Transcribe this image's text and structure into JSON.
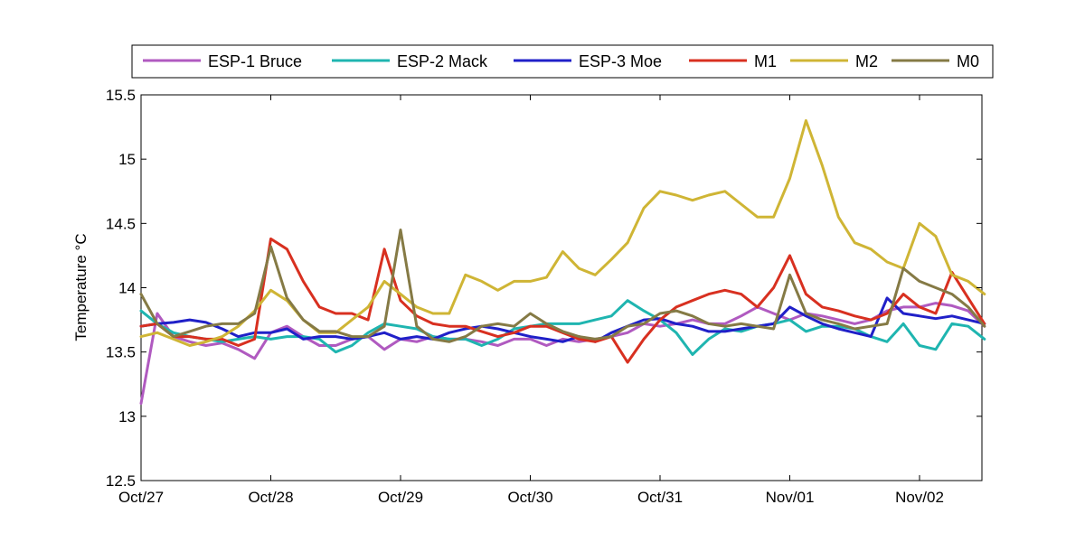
{
  "chart_data": {
    "type": "line",
    "ylabel": "Temperature °C",
    "xlabel": "",
    "ylim": [
      12.5,
      15.5
    ],
    "xlim": [
      "Oct/27",
      "Nov/02 12:00"
    ],
    "x_ticks": [
      "Oct/27",
      "Oct/28",
      "Oct/29",
      "Oct/30",
      "Oct/31",
      "Nov/01",
      "Nov/02"
    ],
    "y_ticks": [
      12.5,
      13,
      13.5,
      14,
      14.5,
      15,
      15.5
    ],
    "y_tick_labels": [
      "12.5",
      "13",
      "13.5",
      "14",
      "14.5",
      "15",
      "15.5"
    ],
    "grid": false,
    "legend_position": "top (horizontal, outside plot)",
    "x": [
      "Oct/27 00:00",
      "Oct/27 03:00",
      "Oct/27 06:00",
      "Oct/27 09:00",
      "Oct/27 12:00",
      "Oct/27 15:00",
      "Oct/27 18:00",
      "Oct/27 21:00",
      "Oct/28 00:00",
      "Oct/28 03:00",
      "Oct/28 06:00",
      "Oct/28 09:00",
      "Oct/28 12:00",
      "Oct/28 15:00",
      "Oct/28 18:00",
      "Oct/28 21:00",
      "Oct/29 00:00",
      "Oct/29 03:00",
      "Oct/29 06:00",
      "Oct/29 09:00",
      "Oct/29 12:00",
      "Oct/29 15:00",
      "Oct/29 18:00",
      "Oct/29 21:00",
      "Oct/30 00:00",
      "Oct/30 03:00",
      "Oct/30 06:00",
      "Oct/30 09:00",
      "Oct/30 12:00",
      "Oct/30 15:00",
      "Oct/30 18:00",
      "Oct/30 21:00",
      "Oct/31 00:00",
      "Oct/31 03:00",
      "Oct/31 06:00",
      "Oct/31 09:00",
      "Oct/31 12:00",
      "Oct/31 15:00",
      "Oct/31 18:00",
      "Oct/31 21:00",
      "Nov/01 00:00",
      "Nov/01 03:00",
      "Nov/01 06:00",
      "Nov/01 09:00",
      "Nov/01 12:00",
      "Nov/01 15:00",
      "Nov/01 18:00",
      "Nov/01 21:00",
      "Nov/02 00:00",
      "Nov/02 03:00",
      "Nov/02 06:00",
      "Nov/02 09:00",
      "Nov/02 12:00"
    ],
    "series": [
      {
        "name": "ESP-1 Bruce",
        "color": "#b05ac0",
        "values": [
          13.1,
          13.8,
          13.62,
          13.58,
          13.55,
          13.57,
          13.52,
          13.45,
          13.65,
          13.7,
          13.62,
          13.55,
          13.55,
          13.6,
          13.62,
          13.52,
          13.6,
          13.58,
          13.62,
          13.6,
          13.6,
          13.58,
          13.55,
          13.6,
          13.6,
          13.55,
          13.6,
          13.58,
          13.6,
          13.62,
          13.65,
          13.72,
          13.7,
          13.72,
          13.75,
          13.72,
          13.72,
          13.78,
          13.85,
          13.8,
          13.75,
          13.8,
          13.78,
          13.75,
          13.72,
          13.75,
          13.82,
          13.85,
          13.85,
          13.88,
          13.86,
          13.82,
          13.7
        ]
      },
      {
        "name": "ESP-2 Mack",
        "color": "#1fb5b0",
        "values": [
          13.82,
          13.72,
          13.65,
          13.62,
          13.6,
          13.58,
          13.6,
          13.62,
          13.6,
          13.62,
          13.62,
          13.6,
          13.5,
          13.55,
          13.65,
          13.72,
          13.7,
          13.68,
          13.62,
          13.6,
          13.6,
          13.55,
          13.6,
          13.68,
          13.7,
          13.72,
          13.72,
          13.72,
          13.75,
          13.78,
          13.9,
          13.82,
          13.75,
          13.65,
          13.48,
          13.6,
          13.68,
          13.66,
          13.7,
          13.72,
          13.75,
          13.66,
          13.7,
          13.7,
          13.68,
          13.62,
          13.58,
          13.72,
          13.55,
          13.52,
          13.72,
          13.7,
          13.6
        ]
      },
      {
        "name": "ESP-3 Moe",
        "color": "#2020c8",
        "values": [
          13.7,
          13.72,
          13.73,
          13.75,
          13.73,
          13.68,
          13.62,
          13.65,
          13.65,
          13.68,
          13.6,
          13.62,
          13.62,
          13.6,
          13.62,
          13.65,
          13.6,
          13.62,
          13.6,
          13.65,
          13.68,
          13.7,
          13.68,
          13.65,
          13.62,
          13.6,
          13.58,
          13.62,
          13.58,
          13.65,
          13.7,
          13.75,
          13.76,
          13.72,
          13.7,
          13.66,
          13.66,
          13.68,
          13.7,
          13.72,
          13.85,
          13.78,
          13.72,
          13.68,
          13.65,
          13.62,
          13.92,
          13.8,
          13.78,
          13.76,
          13.78,
          13.75,
          13.72
        ]
      },
      {
        "name": "M1",
        "color": "#d83020",
        "values": [
          13.7,
          13.72,
          13.62,
          13.62,
          13.6,
          13.6,
          13.55,
          13.6,
          14.38,
          14.3,
          14.05,
          13.85,
          13.8,
          13.8,
          13.75,
          14.3,
          13.9,
          13.78,
          13.72,
          13.7,
          13.7,
          13.66,
          13.62,
          13.65,
          13.7,
          13.7,
          13.65,
          13.6,
          13.58,
          13.62,
          13.42,
          13.6,
          13.75,
          13.85,
          13.9,
          13.95,
          13.98,
          13.95,
          13.85,
          14.0,
          14.25,
          13.95,
          13.85,
          13.82,
          13.78,
          13.75,
          13.8,
          13.95,
          13.85,
          13.8,
          14.12,
          13.92,
          13.72
        ]
      },
      {
        "name": "M2",
        "color": "#cfb535",
        "values": [
          13.62,
          13.65,
          13.6,
          13.55,
          13.58,
          13.62,
          13.7,
          13.82,
          13.98,
          13.9,
          13.75,
          13.65,
          13.65,
          13.75,
          13.85,
          14.05,
          13.95,
          13.85,
          13.8,
          13.8,
          14.1,
          14.05,
          13.98,
          14.05,
          14.05,
          14.08,
          14.28,
          14.15,
          14.1,
          14.22,
          14.35,
          14.62,
          14.75,
          14.72,
          14.68,
          14.72,
          14.75,
          14.65,
          14.55,
          14.55,
          14.85,
          15.3,
          14.95,
          14.55,
          14.35,
          14.3,
          14.2,
          14.15,
          14.5,
          14.4,
          14.1,
          14.05,
          13.95
        ]
      },
      {
        "name": "M0",
        "color": "#857a45",
        "values": [
          13.95,
          13.72,
          13.62,
          13.66,
          13.7,
          13.72,
          13.72,
          13.8,
          14.32,
          13.92,
          13.75,
          13.66,
          13.66,
          13.62,
          13.62,
          13.7,
          14.45,
          13.7,
          13.6,
          13.58,
          13.62,
          13.7,
          13.72,
          13.7,
          13.8,
          13.72,
          13.66,
          13.62,
          13.6,
          13.62,
          13.7,
          13.72,
          13.8,
          13.82,
          13.78,
          13.72,
          13.7,
          13.72,
          13.7,
          13.68,
          14.1,
          13.8,
          13.75,
          13.72,
          13.68,
          13.7,
          13.72,
          14.15,
          14.05,
          14.0,
          13.95,
          13.85,
          13.7
        ]
      }
    ]
  }
}
